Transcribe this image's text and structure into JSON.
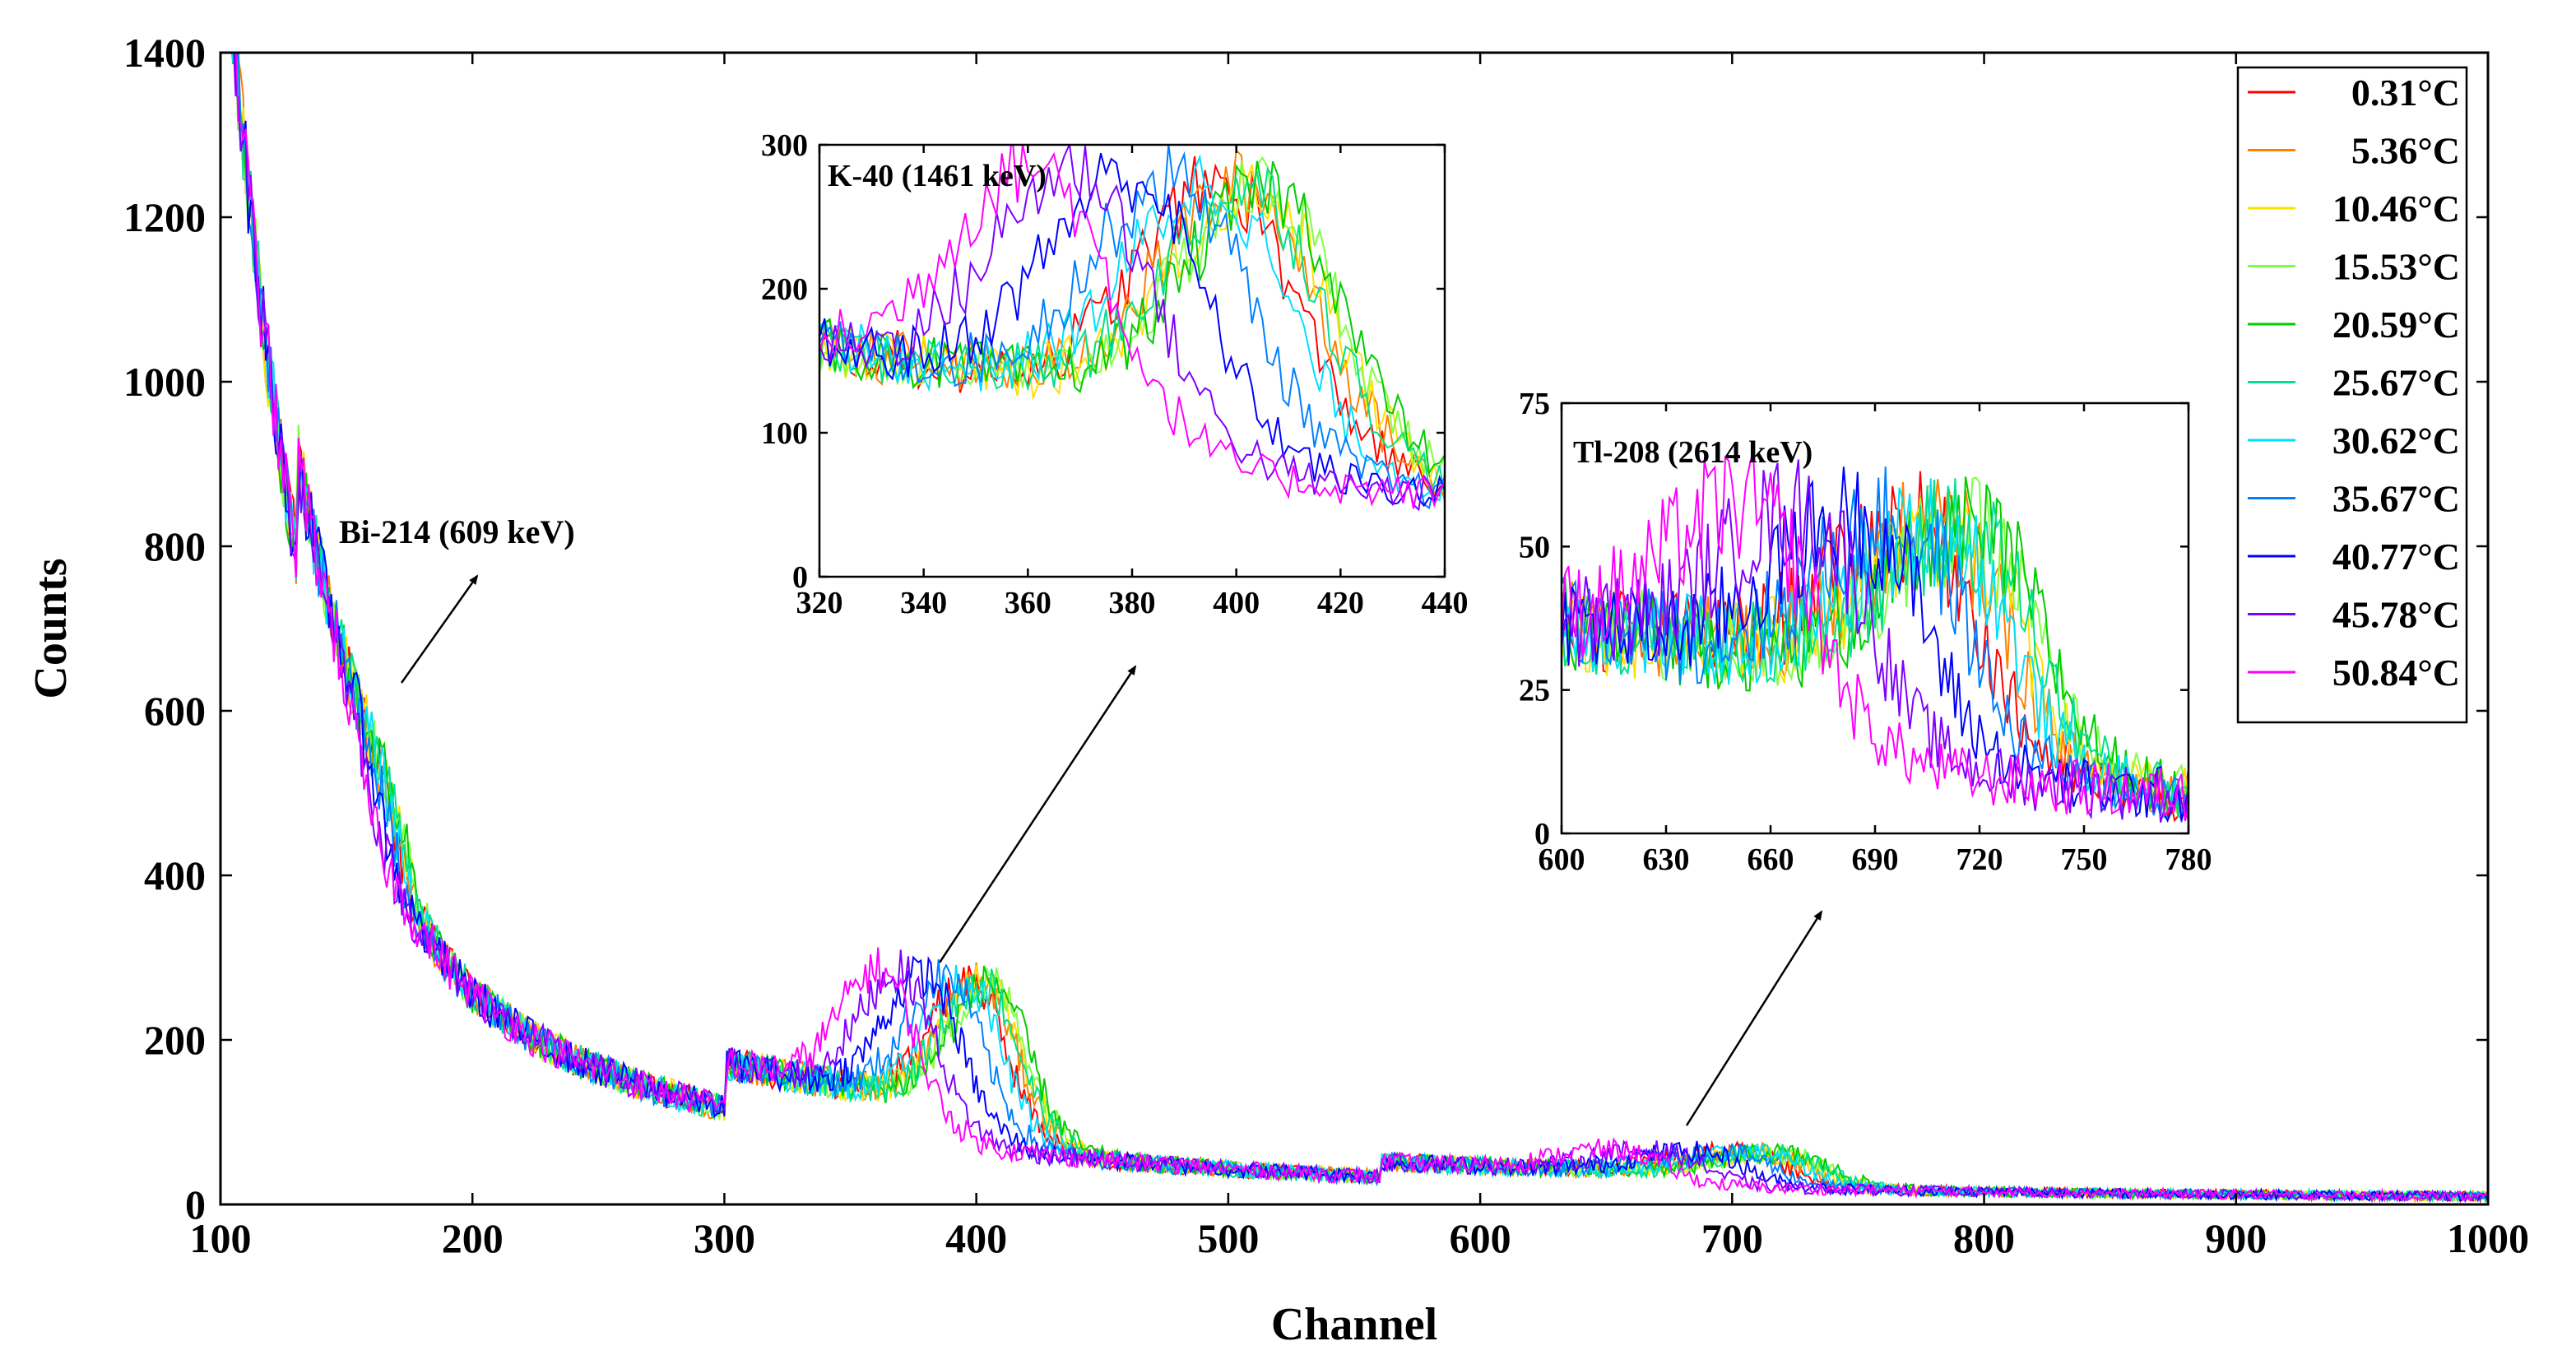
{
  "chart_data": {
    "type": "line",
    "main": {
      "xlabel": "Channel",
      "ylabel": "Counts",
      "xlim": [
        100,
        1000
      ],
      "ylim": [
        0,
        1400
      ],
      "xticks": [
        "100",
        "200",
        "300",
        "400",
        "500",
        "600",
        "700",
        "800",
        "900",
        "1000"
      ],
      "yticks": [
        "0",
        "200",
        "400",
        "600",
        "800",
        "1000",
        "1200",
        "1400"
      ],
      "grid": false
    },
    "legend": {
      "placement": "top-right",
      "entries": [
        "0.31°C",
        "5.36°C",
        "10.46°C",
        "15.53°C",
        "20.59°C",
        "25.67°C",
        "30.62°C",
        "35.67°C",
        "40.77°C",
        "45.78°C",
        "50.84°C"
      ]
    },
    "series": [
      {
        "name": "0.31°C",
        "color": "#ff0000",
        "k40_peak": 398,
        "bi_edge": 170,
        "tl_peak": 700
      },
      {
        "name": "5.36°C",
        "color": "#ff8000",
        "k40_peak": 402,
        "bi_edge": 172,
        "tl_peak": 708
      },
      {
        "name": "10.46°C",
        "color": "#ffe000",
        "k40_peak": 404,
        "bi_edge": 173,
        "tl_peak": 712
      },
      {
        "name": "15.53°C",
        "color": "#80ff40",
        "k40_peak": 406,
        "bi_edge": 175,
        "tl_peak": 716
      },
      {
        "name": "20.59°C",
        "color": "#00cc00",
        "k40_peak": 407,
        "bi_edge": 176,
        "tl_peak": 718
      },
      {
        "name": "25.67°C",
        "color": "#00e090",
        "k40_peak": 403,
        "bi_edge": 174,
        "tl_peak": 715
      },
      {
        "name": "30.62°C",
        "color": "#00e0ff",
        "k40_peak": 396,
        "bi_edge": 171,
        "tl_peak": 708
      },
      {
        "name": "35.67°C",
        "color": "#0080ff",
        "k40_peak": 389,
        "bi_edge": 167,
        "tl_peak": 696
      },
      {
        "name": "40.77°C",
        "color": "#0000ff",
        "k40_peak": 380,
        "bi_edge": 163,
        "tl_peak": 684
      },
      {
        "name": "45.78°C",
        "color": "#8000ff",
        "k40_peak": 370,
        "bi_edge": 158,
        "tl_peak": 668
      },
      {
        "name": "50.84°C",
        "color": "#ff00ff",
        "k40_peak": 362,
        "bi_edge": 154,
        "tl_peak": 652
      }
    ],
    "insets": [
      {
        "title": "K-40 (1461 keV)",
        "xlim": [
          320,
          440
        ],
        "ylim": [
          0,
          300
        ],
        "xticks": [
          "320",
          "340",
          "360",
          "380",
          "400",
          "420",
          "440"
        ],
        "yticks": [
          "0",
          "100",
          "200",
          "300"
        ]
      },
      {
        "title": "Tl-208 (2614 keV)",
        "xlim": [
          600,
          780
        ],
        "ylim": [
          0,
          75
        ],
        "xticks": [
          "600",
          "630",
          "660",
          "690",
          "720",
          "750",
          "780"
        ],
        "yticks": [
          "0",
          "25",
          "50",
          "75"
        ]
      }
    ],
    "annotations": [
      {
        "text": "Bi-214 (609 keV)",
        "arrow_from": [
          155,
          630
        ],
        "arrow_to": [
          185,
          765
        ]
      }
    ]
  }
}
